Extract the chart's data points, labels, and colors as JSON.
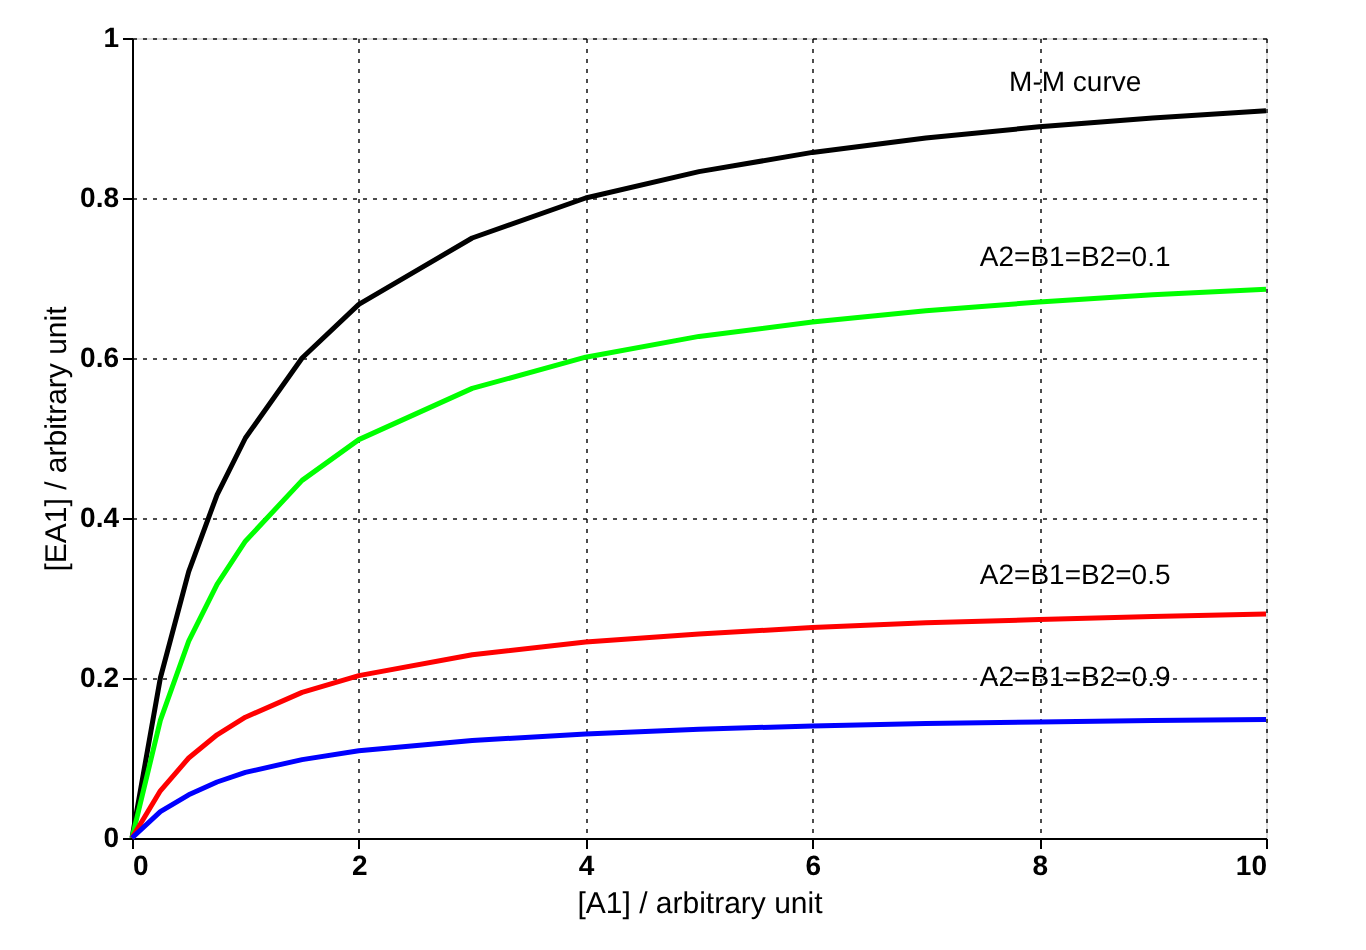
{
  "chart_data": {
    "type": "line",
    "xlabel": "[A1] / arbitrary unit",
    "ylabel": "[EA1] / arbitrary unit",
    "x": [
      0,
      0.25,
      0.5,
      0.75,
      1,
      1.5,
      2,
      3,
      4,
      5,
      6,
      7,
      8,
      9,
      10
    ],
    "series": [
      {
        "name": "M-M curve",
        "color": "#000000",
        "values": [
          0,
          0.2,
          0.333,
          0.429,
          0.5,
          0.6,
          0.667,
          0.75,
          0.8,
          0.833,
          0.857,
          0.875,
          0.889,
          0.9,
          0.909
        ]
      },
      {
        "name": "A2=B1=B2=0.1",
        "color": "#00ff00",
        "values": [
          0,
          0.147,
          0.246,
          0.317,
          0.371,
          0.447,
          0.498,
          0.562,
          0.601,
          0.627,
          0.645,
          0.659,
          0.67,
          0.679,
          0.686
        ]
      },
      {
        "name": "A2=B1=B2=0.5",
        "color": "#ff0000",
        "values": [
          0,
          0.059,
          0.1,
          0.129,
          0.151,
          0.182,
          0.203,
          0.229,
          0.245,
          0.255,
          0.263,
          0.269,
          0.273,
          0.277,
          0.28
        ]
      },
      {
        "name": "A2=B1=B2=0.9",
        "color": "#0000ff",
        "values": [
          0,
          0.033,
          0.054,
          0.07,
          0.082,
          0.098,
          0.109,
          0.122,
          0.13,
          0.136,
          0.14,
          0.143,
          0.145,
          0.147,
          0.148
        ]
      }
    ],
    "xlim": [
      0,
      10
    ],
    "ylim": [
      0,
      1
    ],
    "xticks": [
      0,
      2,
      4,
      6,
      8,
      10
    ],
    "yticks": [
      0,
      0.2,
      0.4,
      0.6,
      0.8,
      1
    ],
    "grid": true,
    "legend": false,
    "marker": "none",
    "line_style": "solid"
  }
}
